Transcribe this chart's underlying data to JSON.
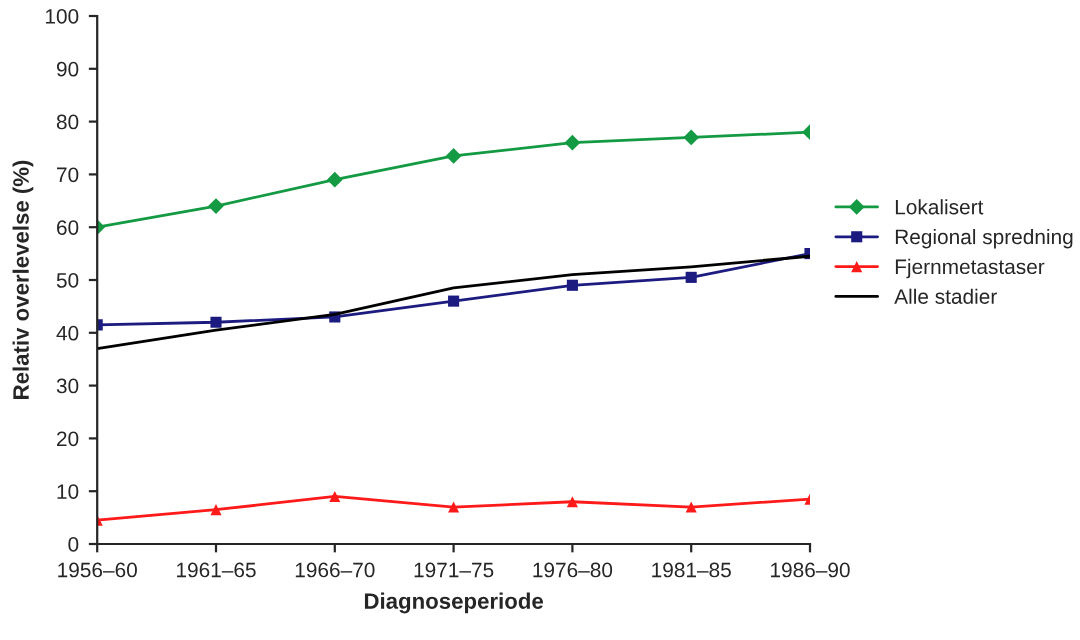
{
  "chart_data": {
    "type": "line",
    "xlabel": "Diagnoseperiode",
    "ylabel": "Relativ overlevelse (%)",
    "categories": [
      "1956–60",
      "1961–65",
      "1966–70",
      "1971–75",
      "1976–80",
      "1981–85",
      "1986–90"
    ],
    "series": [
      {
        "name": "Lokalisert",
        "color": "#139a43",
        "marker": "diamond",
        "values": [
          60,
          64,
          69,
          73.5,
          76,
          77,
          78
        ]
      },
      {
        "name": "Regional spredning",
        "color": "#1c1c80",
        "marker": "square",
        "values": [
          41.5,
          42,
          43,
          46,
          49,
          50.5,
          55
        ]
      },
      {
        "name": "Fjernmetastaser",
        "color": "#ff1a1a",
        "marker": "triangle",
        "values": [
          4.5,
          6.5,
          9,
          7,
          8,
          7,
          8.5
        ]
      },
      {
        "name": "Alle stadier",
        "color": "#000000",
        "marker": "none",
        "values": [
          37,
          40.5,
          43.5,
          48.5,
          51,
          52.5,
          54.5
        ]
      }
    ],
    "ylim": [
      0,
      100
    ],
    "yticks": [
      0,
      10,
      20,
      30,
      40,
      50,
      60,
      70,
      80,
      90,
      100
    ],
    "grid": false,
    "legend": "right",
    "line_style": "solid"
  }
}
